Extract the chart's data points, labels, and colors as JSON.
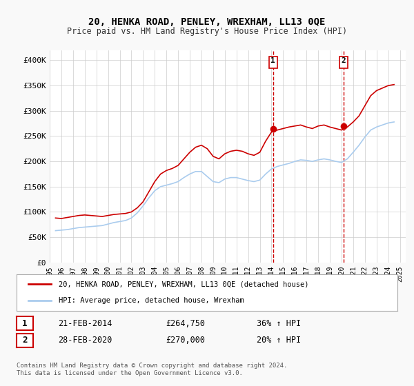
{
  "title": "20, HENKA ROAD, PENLEY, WREXHAM, LL13 0QE",
  "subtitle": "Price paid vs. HM Land Registry's House Price Index (HPI)",
  "ylabel": "",
  "ylim": [
    0,
    420000
  ],
  "yticks": [
    0,
    50000,
    100000,
    150000,
    200000,
    250000,
    300000,
    350000,
    400000
  ],
  "ytick_labels": [
    "£0",
    "£50K",
    "£100K",
    "£150K",
    "£200K",
    "£250K",
    "£300K",
    "£350K",
    "£400K"
  ],
  "background_color": "#f9f9f9",
  "plot_bg_color": "#ffffff",
  "grid_color": "#cccccc",
  "red_line_color": "#cc0000",
  "blue_line_color": "#aaccee",
  "marker1_date_x": 2014.13,
  "marker1_price": 264750,
  "marker1_label": "1",
  "marker2_date_x": 2020.16,
  "marker2_price": 270000,
  "marker2_label": "2",
  "legend_label_red": "20, HENKA ROAD, PENLEY, WREXHAM, LL13 0QE (detached house)",
  "legend_label_blue": "HPI: Average price, detached house, Wrexham",
  "annotation1": [
    "1",
    "21-FEB-2014",
    "£264,750",
    "36% ↑ HPI"
  ],
  "annotation2": [
    "2",
    "28-FEB-2020",
    "£270,000",
    "20% ↑ HPI"
  ],
  "footer": "Contains HM Land Registry data © Crown copyright and database right 2024.\nThis data is licensed under the Open Government Licence v3.0.",
  "red_hpi_data": {
    "years": [
      1995.5,
      1996.0,
      1996.5,
      1997.0,
      1997.5,
      1998.0,
      1998.5,
      1999.0,
      1999.5,
      2000.0,
      2000.5,
      2001.0,
      2001.5,
      2002.0,
      2002.5,
      2003.0,
      2003.5,
      2004.0,
      2004.5,
      2005.0,
      2005.5,
      2006.0,
      2006.5,
      2007.0,
      2007.5,
      2008.0,
      2008.5,
      2009.0,
      2009.5,
      2010.0,
      2010.5,
      2011.0,
      2011.5,
      2012.0,
      2012.5,
      2013.0,
      2013.5,
      2014.0,
      2014.5,
      2015.0,
      2015.5,
      2016.0,
      2016.5,
      2017.0,
      2017.5,
      2018.0,
      2018.5,
      2019.0,
      2019.5,
      2020.0,
      2020.5,
      2021.0,
      2021.5,
      2022.0,
      2022.5,
      2023.0,
      2023.5,
      2024.0,
      2024.5
    ],
    "values": [
      88000,
      87000,
      89000,
      91000,
      93000,
      94000,
      93000,
      92000,
      91000,
      93000,
      95000,
      96000,
      97000,
      100000,
      108000,
      120000,
      140000,
      160000,
      175000,
      182000,
      186000,
      192000,
      205000,
      218000,
      228000,
      232000,
      225000,
      210000,
      205000,
      215000,
      220000,
      222000,
      220000,
      215000,
      212000,
      218000,
      240000,
      258000,
      262000,
      265000,
      268000,
      270000,
      272000,
      268000,
      265000,
      270000,
      272000,
      268000,
      265000,
      262000,
      268000,
      278000,
      290000,
      310000,
      330000,
      340000,
      345000,
      350000,
      352000
    ]
  },
  "blue_hpi_data": {
    "years": [
      1995.5,
      1996.0,
      1996.5,
      1997.0,
      1997.5,
      1998.0,
      1998.5,
      1999.0,
      1999.5,
      2000.0,
      2000.5,
      2001.0,
      2001.5,
      2002.0,
      2002.5,
      2003.0,
      2003.5,
      2004.0,
      2004.5,
      2005.0,
      2005.5,
      2006.0,
      2006.5,
      2007.0,
      2007.5,
      2008.0,
      2008.5,
      2009.0,
      2009.5,
      2010.0,
      2010.5,
      2011.0,
      2011.5,
      2012.0,
      2012.5,
      2013.0,
      2013.5,
      2014.0,
      2014.5,
      2015.0,
      2015.5,
      2016.0,
      2016.5,
      2017.0,
      2017.5,
      2018.0,
      2018.5,
      2019.0,
      2019.5,
      2020.0,
      2020.5,
      2021.0,
      2021.5,
      2022.0,
      2022.5,
      2023.0,
      2023.5,
      2024.0,
      2024.5
    ],
    "values": [
      63000,
      64000,
      65000,
      67000,
      69000,
      70000,
      71000,
      72000,
      73000,
      76000,
      79000,
      81000,
      83000,
      88000,
      98000,
      112000,
      128000,
      142000,
      150000,
      153000,
      156000,
      160000,
      168000,
      175000,
      180000,
      180000,
      170000,
      160000,
      158000,
      165000,
      168000,
      168000,
      165000,
      162000,
      160000,
      163000,
      175000,
      185000,
      190000,
      193000,
      196000,
      200000,
      203000,
      202000,
      200000,
      203000,
      205000,
      203000,
      200000,
      198000,
      205000,
      218000,
      232000,
      248000,
      262000,
      268000,
      272000,
      276000,
      278000
    ]
  },
  "xtick_years": [
    1995,
    1996,
    1997,
    1998,
    1999,
    2000,
    2001,
    2002,
    2003,
    2004,
    2005,
    2006,
    2007,
    2008,
    2009,
    2010,
    2011,
    2012,
    2013,
    2014,
    2015,
    2016,
    2017,
    2018,
    2019,
    2020,
    2021,
    2022,
    2023,
    2024,
    2025
  ]
}
